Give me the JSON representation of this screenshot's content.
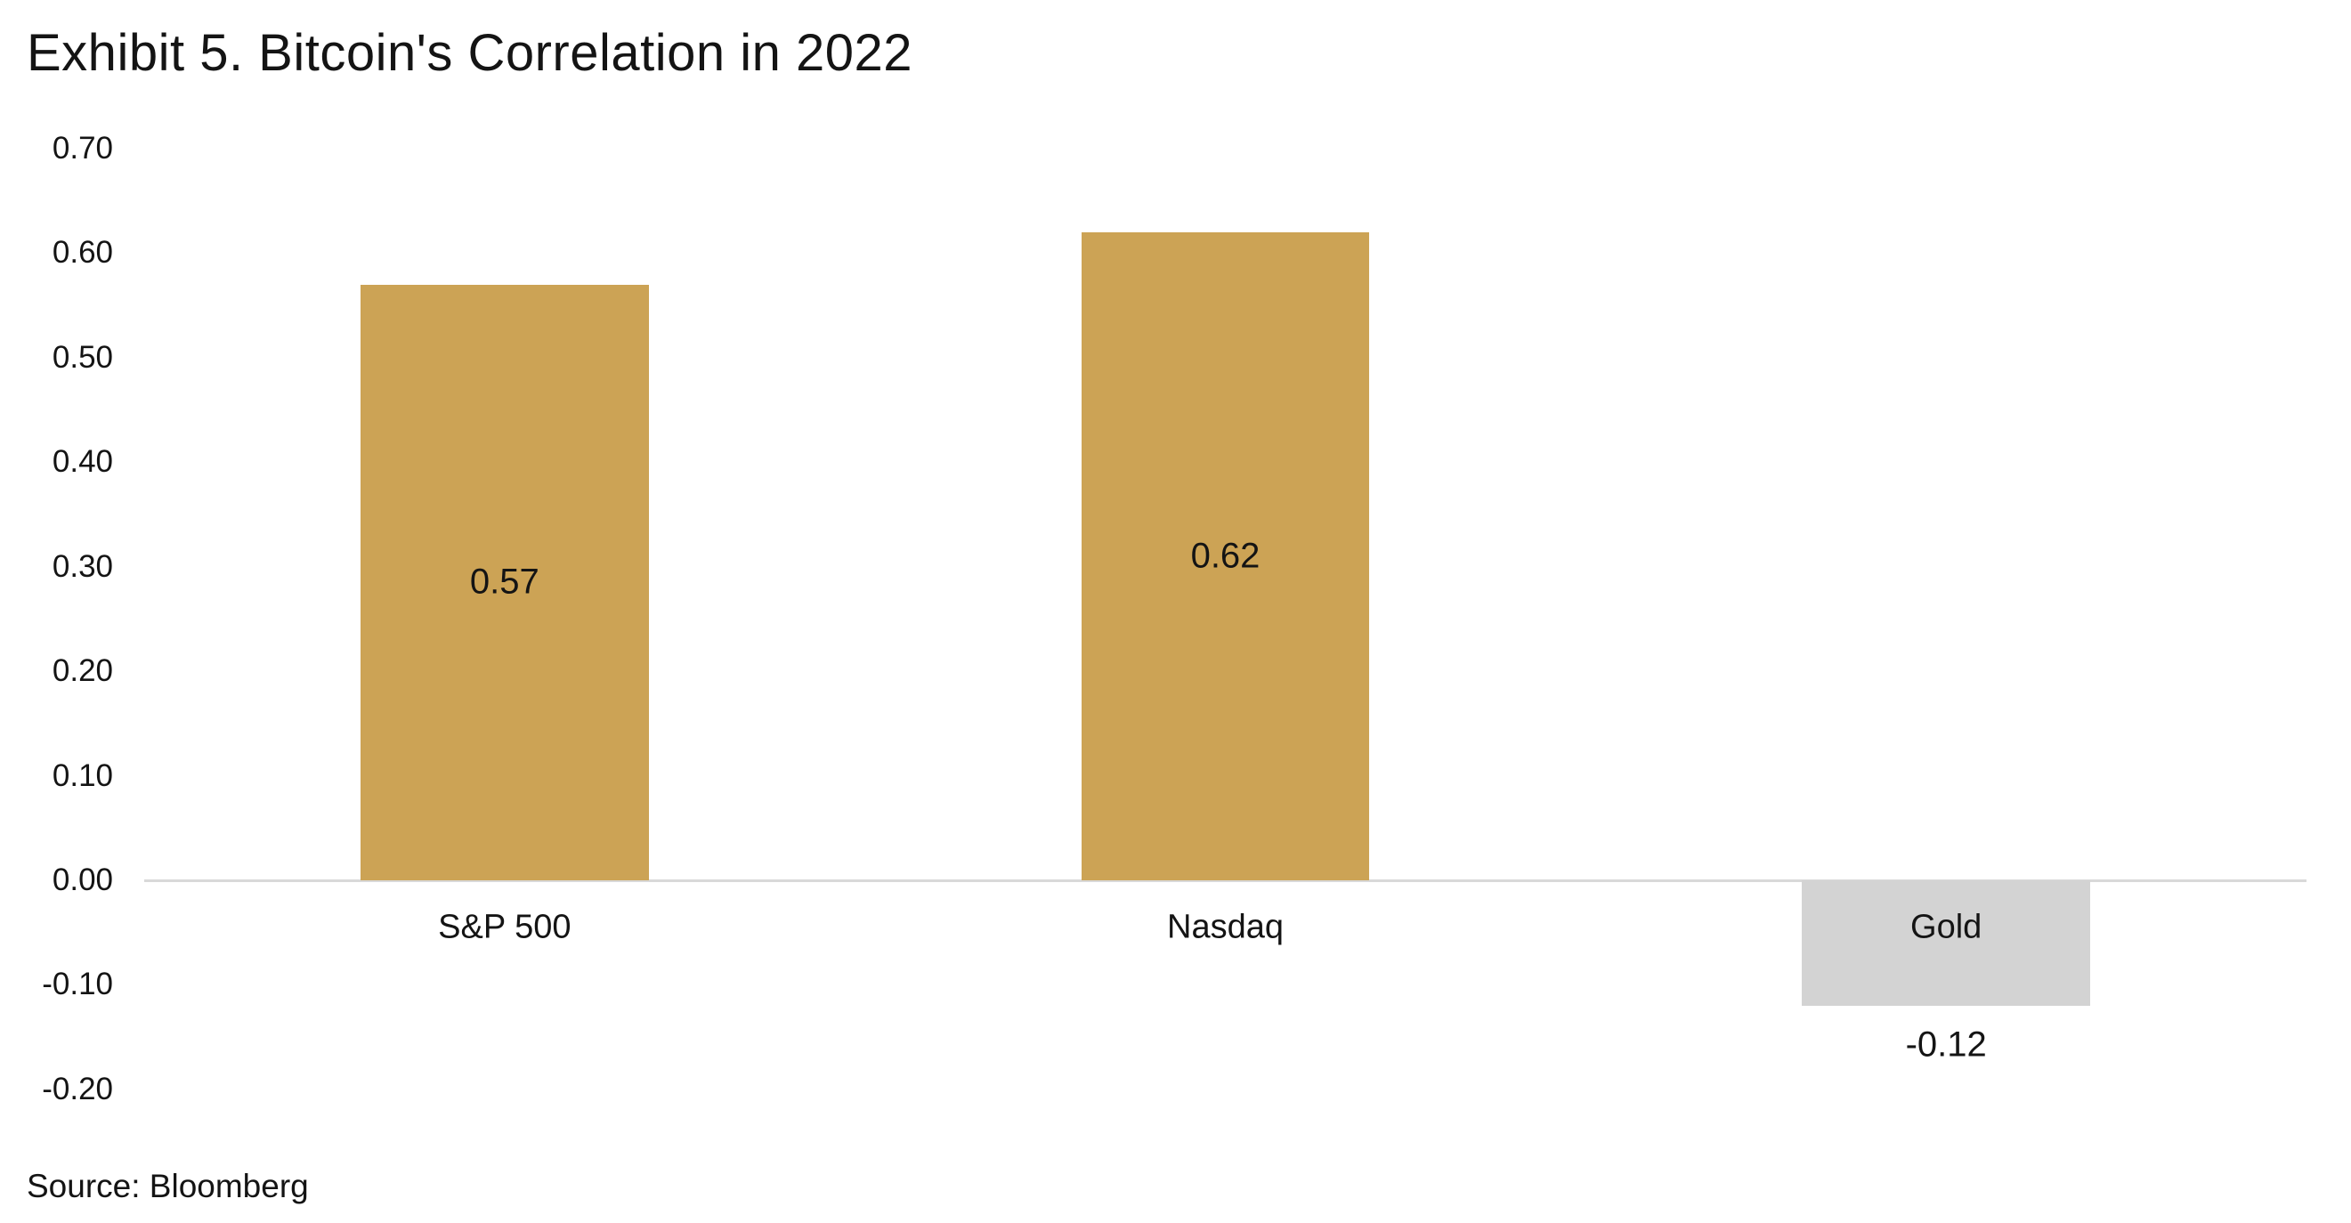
{
  "title": "Exhibit 5. Bitcoin's Correlation in 2022",
  "source": "Source: Bloomberg",
  "colors": {
    "positive_bar": "#CCA355",
    "negative_bar": "#D3D3D3",
    "axis_line": "#D9D9D9",
    "text": "#141414",
    "background": "#FFFFFF"
  },
  "chart_data": {
    "type": "bar",
    "title": "Exhibit 5. Bitcoin's Correlation in 2022",
    "categories": [
      "S&P 500",
      "Nasdaq",
      "Gold"
    ],
    "values": [
      0.57,
      0.62,
      -0.12
    ],
    "data_labels": [
      "0.57",
      "0.62",
      "-0.12"
    ],
    "bar_colors": [
      "#CCA355",
      "#CCA355",
      "#D3D3D3"
    ],
    "xlabel": "",
    "ylabel": "",
    "ylim": [
      -0.2,
      0.7
    ],
    "ytick_step": 0.1,
    "ytick_labels": [
      "0.70",
      "0.60",
      "0.50",
      "0.40",
      "0.30",
      "0.20",
      "0.10",
      "0.00",
      "-0.10",
      "-0.20"
    ],
    "ytick_values": [
      0.7,
      0.6,
      0.5,
      0.4,
      0.3,
      0.2,
      0.1,
      0.0,
      -0.1,
      -0.2
    ],
    "grid": false,
    "legend": false,
    "source": "Source: Bloomberg"
  }
}
